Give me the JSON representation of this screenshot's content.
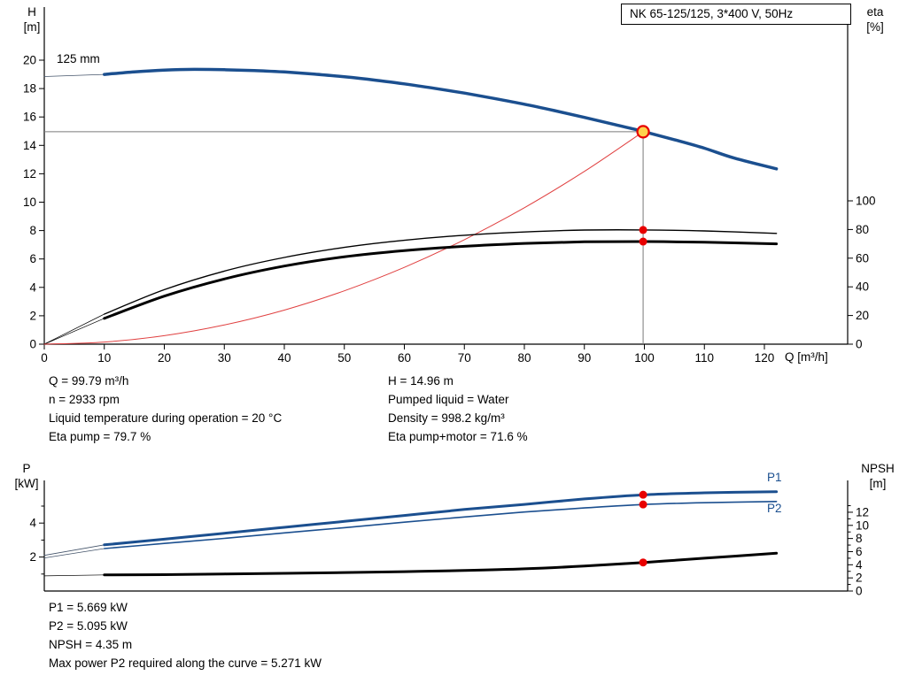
{
  "info": {
    "left": [
      "Q = 99.79 m³/h",
      "n = 2933 rpm",
      "Liquid temperature during operation = 20 °C",
      "Eta pump = 79.7 %"
    ],
    "right": [
      "H = 14.96 m",
      "Pumped liquid = Water",
      "Density = 998.2 kg/m³",
      "Eta pump+motor = 71.6 %"
    ],
    "bottom": [
      "P1 = 5.669 kW",
      "P2 = 5.095 kW",
      "NPSH = 4.35 m",
      "Max power P2 required along the curve = 5.271 kW"
    ]
  },
  "colors": {
    "curve_blue": "#1b4f8f",
    "curve_black": "#000000",
    "curve_red": "#e04040",
    "dot_red": "#e80000",
    "duty_fill": "#ffd24d",
    "ref_gray": "#7a7a7a"
  },
  "chart_data": [
    {
      "type": "line",
      "title": "NK 65-125/125, 3*400 V, 50Hz",
      "impeller_label": "125 mm",
      "x_axis": {
        "label": "Q [m³/h]",
        "min": 0,
        "max": 134,
        "ticks": [
          0,
          10,
          20,
          30,
          40,
          50,
          60,
          70,
          80,
          90,
          100,
          110,
          120
        ]
      },
      "y_left": {
        "name": "H",
        "unit": "[m]",
        "min": 0,
        "max": 23.6,
        "ticks": [
          0,
          2,
          4,
          6,
          8,
          10,
          12,
          14,
          16,
          18,
          20
        ],
        "minor_ticks": []
      },
      "y_right": {
        "name": "eta",
        "unit": "[%]",
        "min": 0,
        "max": 100,
        "ticks": [
          0,
          20,
          40,
          60,
          80,
          100
        ],
        "minor_ticks": []
      },
      "series": [
        {
          "name": "H-lead",
          "axis": "left",
          "color": "#44546a",
          "width": 0.8,
          "x": [
            0,
            10
          ],
          "y": [
            18.85,
            19.0
          ]
        },
        {
          "name": "eta-pump-lead",
          "axis": "right",
          "color": "#000000",
          "width": 0.7,
          "x": [
            0,
            10
          ],
          "y": [
            0,
            21
          ]
        },
        {
          "name": "eta-pump-motor-lead",
          "axis": "right",
          "color": "#000000",
          "width": 0.7,
          "x": [
            0,
            10
          ],
          "y": [
            0,
            18
          ]
        },
        {
          "name": "duty-parabola",
          "axis": "left",
          "color": "#e04040",
          "width": 1,
          "x": [
            0,
            10,
            20,
            30,
            40,
            50,
            60,
            70,
            80,
            90,
            99.79
          ],
          "y": [
            0,
            0.15,
            0.6,
            1.35,
            2.4,
            3.76,
            5.41,
            7.36,
            9.61,
            12.17,
            14.96
          ]
        },
        {
          "name": "eta-pump",
          "axis": "right",
          "color": "#000000",
          "width": 1.4,
          "x": [
            10,
            20,
            30,
            40,
            50,
            60,
            70,
            80,
            90,
            100,
            110,
            122
          ],
          "y": [
            21,
            38,
            51,
            60.5,
            67.5,
            72.5,
            76,
            78.3,
            79.6,
            79.7,
            79.0,
            77.3
          ]
        },
        {
          "name": "eta-pump-motor",
          "axis": "right",
          "color": "#000000",
          "width": 3,
          "x": [
            10,
            20,
            30,
            40,
            50,
            60,
            70,
            80,
            90,
            100,
            110,
            122
          ],
          "y": [
            18,
            33.5,
            45.5,
            54.5,
            61,
            65.3,
            68.3,
            70.3,
            71.4,
            71.6,
            71.1,
            70.0
          ]
        },
        {
          "name": "H",
          "axis": "left",
          "color": "#1b4f8f",
          "width": 3.5,
          "x": [
            10,
            15,
            20,
            25,
            30,
            35,
            40,
            45,
            50,
            55,
            60,
            65,
            70,
            75,
            80,
            85,
            90,
            95,
            100,
            105,
            110,
            115,
            122
          ],
          "y": [
            19.0,
            19.18,
            19.3,
            19.35,
            19.33,
            19.27,
            19.17,
            19.02,
            18.83,
            18.6,
            18.33,
            18.02,
            17.68,
            17.3,
            16.9,
            16.45,
            15.97,
            15.47,
            14.96,
            14.4,
            13.8,
            13.1,
            12.35
          ]
        }
      ],
      "ref_lines": [
        {
          "type": "h",
          "axis": "left",
          "y": 14.96,
          "to_x": 99.79
        },
        {
          "type": "v",
          "axis": "left",
          "x": 99.79,
          "from": 14.96
        }
      ],
      "markers": [
        {
          "kind": "dot",
          "axis": "right",
          "x": 99.79,
          "y": 79.7,
          "color": "#e80000"
        },
        {
          "kind": "dot",
          "axis": "right",
          "x": 99.79,
          "y": 71.6,
          "color": "#e80000"
        },
        {
          "kind": "duty",
          "axis": "left",
          "x": 99.79,
          "y": 14.96,
          "fill": "#ffd24d",
          "ring": "#e80000"
        }
      ],
      "duty_point": {
        "Q": 99.79,
        "H": 14.96,
        "eta_pump": 79.7,
        "eta_pump_motor": 71.6
      }
    },
    {
      "type": "line",
      "x_axis": {
        "label": "",
        "min": 0,
        "max": 134,
        "ticks": []
      },
      "y_left": {
        "name": "P",
        "unit": "[kW]",
        "min": 0,
        "max": 6.5,
        "ticks": [
          2,
          4
        ],
        "minor_ticks": [
          1,
          3,
          5
        ]
      },
      "y_right": {
        "name": "NPSH",
        "unit": "[m]",
        "min": 0,
        "max": 16,
        "ticks": [
          0,
          2,
          4,
          6,
          8,
          10,
          12
        ],
        "minor_ticks": [
          1,
          3,
          5,
          7,
          9,
          11,
          13
        ]
      },
      "series": [
        {
          "name": "P1-lead",
          "axis": "left",
          "color": "#44546a",
          "width": 0.8,
          "x": [
            0,
            10
          ],
          "y": [
            2.1,
            2.72
          ]
        },
        {
          "name": "P2-lead",
          "axis": "left",
          "color": "#44546a",
          "width": 0.8,
          "x": [
            0,
            10
          ],
          "y": [
            1.95,
            2.5
          ]
        },
        {
          "name": "NPSH-lead",
          "axis": "right",
          "color": "#000000",
          "width": 0.7,
          "x": [
            0,
            10
          ],
          "y": [
            2.3,
            2.45
          ]
        },
        {
          "name": "P1",
          "axis": "left",
          "color": "#1b4f8f",
          "width": 3,
          "x": [
            10,
            20,
            30,
            40,
            50,
            60,
            70,
            80,
            90,
            100,
            110,
            122
          ],
          "y": [
            2.72,
            3.05,
            3.4,
            3.75,
            4.1,
            4.45,
            4.8,
            5.1,
            5.42,
            5.669,
            5.78,
            5.85
          ]
        },
        {
          "name": "P2",
          "axis": "left",
          "color": "#1b4f8f",
          "width": 1.6,
          "x": [
            10,
            20,
            30,
            40,
            50,
            60,
            70,
            80,
            90,
            100,
            110,
            122
          ],
          "y": [
            2.5,
            2.8,
            3.1,
            3.42,
            3.73,
            4.05,
            4.36,
            4.65,
            4.89,
            5.095,
            5.2,
            5.271
          ]
        },
        {
          "name": "NPSH",
          "axis": "right",
          "color": "#000000",
          "width": 3,
          "x": [
            10,
            20,
            30,
            40,
            50,
            60,
            70,
            80,
            90,
            100,
            110,
            122
          ],
          "y": [
            2.45,
            2.5,
            2.6,
            2.7,
            2.82,
            2.95,
            3.12,
            3.38,
            3.8,
            4.35,
            5.0,
            5.75
          ]
        }
      ],
      "ref_lines": [],
      "markers": [
        {
          "kind": "dot",
          "axis": "left",
          "x": 99.79,
          "y": 5.669,
          "color": "#e80000"
        },
        {
          "kind": "dot",
          "axis": "left",
          "x": 99.79,
          "y": 5.095,
          "color": "#e80000"
        },
        {
          "kind": "dot",
          "axis": "right",
          "x": 99.79,
          "y": 4.35,
          "color": "#e80000"
        }
      ],
      "duty_point": {
        "Q": 99.79,
        "P1": 5.669,
        "P2": 5.095,
        "NPSH": 4.35
      }
    }
  ]
}
